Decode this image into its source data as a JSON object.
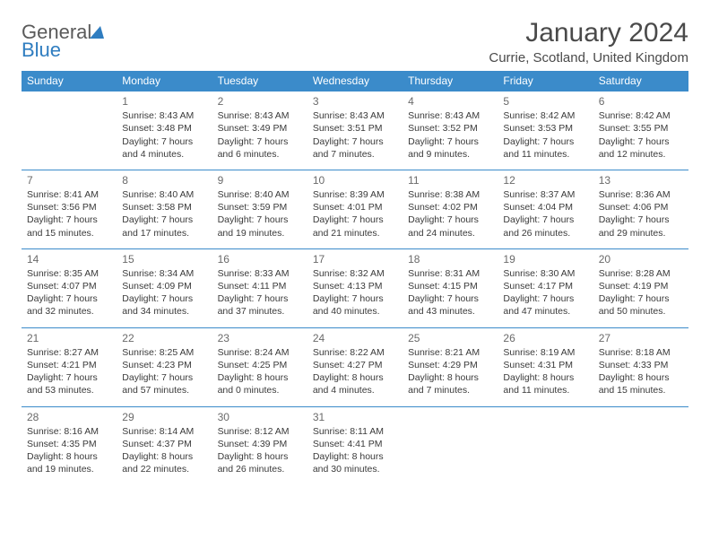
{
  "brand": {
    "word1": "General",
    "word2": "Blue"
  },
  "title": "January 2024",
  "location": "Currie, Scotland, United Kingdom",
  "weekdays": [
    "Sunday",
    "Monday",
    "Tuesday",
    "Wednesday",
    "Thursday",
    "Friday",
    "Saturday"
  ],
  "colors": {
    "header_bg": "#3b8bca",
    "header_text": "#ffffff",
    "border": "#3b8bca",
    "text": "#3a3a3a",
    "daynum": "#6a6a6a",
    "brand_blue": "#2f7dc0"
  },
  "weeks": [
    [
      null,
      {
        "n": "1",
        "sr": "Sunrise: 8:43 AM",
        "ss": "Sunset: 3:48 PM",
        "d1": "Daylight: 7 hours",
        "d2": "and 4 minutes."
      },
      {
        "n": "2",
        "sr": "Sunrise: 8:43 AM",
        "ss": "Sunset: 3:49 PM",
        "d1": "Daylight: 7 hours",
        "d2": "and 6 minutes."
      },
      {
        "n": "3",
        "sr": "Sunrise: 8:43 AM",
        "ss": "Sunset: 3:51 PM",
        "d1": "Daylight: 7 hours",
        "d2": "and 7 minutes."
      },
      {
        "n": "4",
        "sr": "Sunrise: 8:43 AM",
        "ss": "Sunset: 3:52 PM",
        "d1": "Daylight: 7 hours",
        "d2": "and 9 minutes."
      },
      {
        "n": "5",
        "sr": "Sunrise: 8:42 AM",
        "ss": "Sunset: 3:53 PM",
        "d1": "Daylight: 7 hours",
        "d2": "and 11 minutes."
      },
      {
        "n": "6",
        "sr": "Sunrise: 8:42 AM",
        "ss": "Sunset: 3:55 PM",
        "d1": "Daylight: 7 hours",
        "d2": "and 12 minutes."
      }
    ],
    [
      {
        "n": "7",
        "sr": "Sunrise: 8:41 AM",
        "ss": "Sunset: 3:56 PM",
        "d1": "Daylight: 7 hours",
        "d2": "and 15 minutes."
      },
      {
        "n": "8",
        "sr": "Sunrise: 8:40 AM",
        "ss": "Sunset: 3:58 PM",
        "d1": "Daylight: 7 hours",
        "d2": "and 17 minutes."
      },
      {
        "n": "9",
        "sr": "Sunrise: 8:40 AM",
        "ss": "Sunset: 3:59 PM",
        "d1": "Daylight: 7 hours",
        "d2": "and 19 minutes."
      },
      {
        "n": "10",
        "sr": "Sunrise: 8:39 AM",
        "ss": "Sunset: 4:01 PM",
        "d1": "Daylight: 7 hours",
        "d2": "and 21 minutes."
      },
      {
        "n": "11",
        "sr": "Sunrise: 8:38 AM",
        "ss": "Sunset: 4:02 PM",
        "d1": "Daylight: 7 hours",
        "d2": "and 24 minutes."
      },
      {
        "n": "12",
        "sr": "Sunrise: 8:37 AM",
        "ss": "Sunset: 4:04 PM",
        "d1": "Daylight: 7 hours",
        "d2": "and 26 minutes."
      },
      {
        "n": "13",
        "sr": "Sunrise: 8:36 AM",
        "ss": "Sunset: 4:06 PM",
        "d1": "Daylight: 7 hours",
        "d2": "and 29 minutes."
      }
    ],
    [
      {
        "n": "14",
        "sr": "Sunrise: 8:35 AM",
        "ss": "Sunset: 4:07 PM",
        "d1": "Daylight: 7 hours",
        "d2": "and 32 minutes."
      },
      {
        "n": "15",
        "sr": "Sunrise: 8:34 AM",
        "ss": "Sunset: 4:09 PM",
        "d1": "Daylight: 7 hours",
        "d2": "and 34 minutes."
      },
      {
        "n": "16",
        "sr": "Sunrise: 8:33 AM",
        "ss": "Sunset: 4:11 PM",
        "d1": "Daylight: 7 hours",
        "d2": "and 37 minutes."
      },
      {
        "n": "17",
        "sr": "Sunrise: 8:32 AM",
        "ss": "Sunset: 4:13 PM",
        "d1": "Daylight: 7 hours",
        "d2": "and 40 minutes."
      },
      {
        "n": "18",
        "sr": "Sunrise: 8:31 AM",
        "ss": "Sunset: 4:15 PM",
        "d1": "Daylight: 7 hours",
        "d2": "and 43 minutes."
      },
      {
        "n": "19",
        "sr": "Sunrise: 8:30 AM",
        "ss": "Sunset: 4:17 PM",
        "d1": "Daylight: 7 hours",
        "d2": "and 47 minutes."
      },
      {
        "n": "20",
        "sr": "Sunrise: 8:28 AM",
        "ss": "Sunset: 4:19 PM",
        "d1": "Daylight: 7 hours",
        "d2": "and 50 minutes."
      }
    ],
    [
      {
        "n": "21",
        "sr": "Sunrise: 8:27 AM",
        "ss": "Sunset: 4:21 PM",
        "d1": "Daylight: 7 hours",
        "d2": "and 53 minutes."
      },
      {
        "n": "22",
        "sr": "Sunrise: 8:25 AM",
        "ss": "Sunset: 4:23 PM",
        "d1": "Daylight: 7 hours",
        "d2": "and 57 minutes."
      },
      {
        "n": "23",
        "sr": "Sunrise: 8:24 AM",
        "ss": "Sunset: 4:25 PM",
        "d1": "Daylight: 8 hours",
        "d2": "and 0 minutes."
      },
      {
        "n": "24",
        "sr": "Sunrise: 8:22 AM",
        "ss": "Sunset: 4:27 PM",
        "d1": "Daylight: 8 hours",
        "d2": "and 4 minutes."
      },
      {
        "n": "25",
        "sr": "Sunrise: 8:21 AM",
        "ss": "Sunset: 4:29 PM",
        "d1": "Daylight: 8 hours",
        "d2": "and 7 minutes."
      },
      {
        "n": "26",
        "sr": "Sunrise: 8:19 AM",
        "ss": "Sunset: 4:31 PM",
        "d1": "Daylight: 8 hours",
        "d2": "and 11 minutes."
      },
      {
        "n": "27",
        "sr": "Sunrise: 8:18 AM",
        "ss": "Sunset: 4:33 PM",
        "d1": "Daylight: 8 hours",
        "d2": "and 15 minutes."
      }
    ],
    [
      {
        "n": "28",
        "sr": "Sunrise: 8:16 AM",
        "ss": "Sunset: 4:35 PM",
        "d1": "Daylight: 8 hours",
        "d2": "and 19 minutes."
      },
      {
        "n": "29",
        "sr": "Sunrise: 8:14 AM",
        "ss": "Sunset: 4:37 PM",
        "d1": "Daylight: 8 hours",
        "d2": "and 22 minutes."
      },
      {
        "n": "30",
        "sr": "Sunrise: 8:12 AM",
        "ss": "Sunset: 4:39 PM",
        "d1": "Daylight: 8 hours",
        "d2": "and 26 minutes."
      },
      {
        "n": "31",
        "sr": "Sunrise: 8:11 AM",
        "ss": "Sunset: 4:41 PM",
        "d1": "Daylight: 8 hours",
        "d2": "and 30 minutes."
      },
      null,
      null,
      null
    ]
  ]
}
